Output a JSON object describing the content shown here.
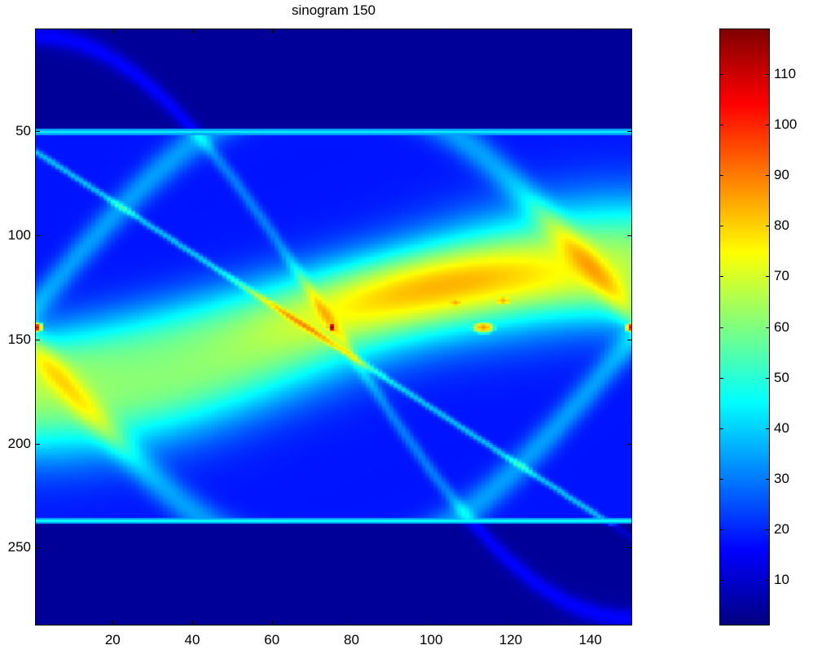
{
  "chart_data": {
    "type": "heatmap",
    "title": "sinogram 150",
    "xlabel": "",
    "ylabel": "",
    "xlim": [
      1,
      150
    ],
    "ylim": [
      1,
      287
    ],
    "y_direction": "top-down",
    "x_ticks": [
      20,
      40,
      60,
      80,
      100,
      120,
      140
    ],
    "y_ticks": [
      50,
      100,
      150,
      200,
      250
    ],
    "colormap": "jet",
    "clim": [
      1,
      119
    ],
    "colorbar_ticks": [
      10,
      20,
      30,
      40,
      50,
      60,
      70,
      80,
      90,
      100,
      110
    ],
    "features": {
      "horizontal_lines": [
        {
          "y": 50,
          "value": 45
        },
        {
          "y": 237,
          "value": 45
        }
      ],
      "hot_spots": [
        {
          "x": 1,
          "y": 144,
          "value": 110
        },
        {
          "x": 75,
          "y": 144,
          "value": 119
        },
        {
          "x": 150,
          "y": 144,
          "value": 110
        }
      ],
      "warm_blobs": [
        {
          "x": 106,
          "y": 132,
          "value": 85
        },
        {
          "x": 118,
          "y": 131,
          "value": 85
        },
        {
          "x": 113,
          "y": 144,
          "value": 88
        }
      ]
    }
  },
  "colors": {
    "background": "#ffffff",
    "plot_background": "#00008f",
    "axis": "#000000"
  }
}
